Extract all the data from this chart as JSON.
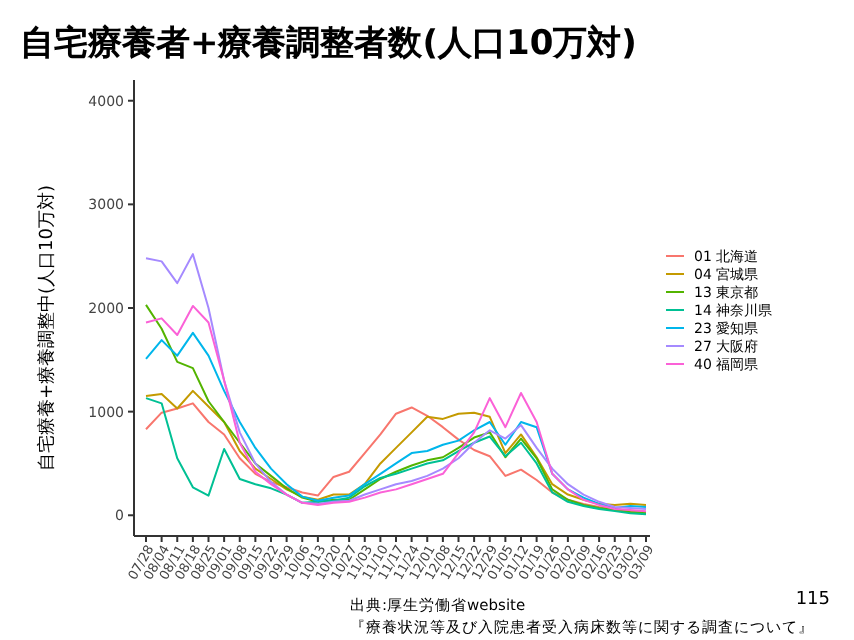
{
  "chart_data": {
    "type": "line",
    "title": "自宅療養者+療養調整者数(人口10万対)",
    "ylabel": "自宅療養+療養調整中(人口10万対)",
    "categories": [
      "07/28",
      "08/04",
      "08/11",
      "08/18",
      "08/25",
      "09/01",
      "09/08",
      "09/15",
      "09/22",
      "09/29",
      "10/06",
      "10/13",
      "10/20",
      "10/27",
      "11/03",
      "11/10",
      "11/17",
      "11/24",
      "12/01",
      "12/08",
      "12/15",
      "12/22",
      "12/29",
      "01/05",
      "01/12",
      "01/19",
      "01/26",
      "02/02",
      "02/09",
      "02/16",
      "02/23",
      "03/02",
      "03/09"
    ],
    "ylim": [
      -200,
      4200
    ],
    "yticks": [
      0,
      1000,
      2000,
      3000,
      4000
    ],
    "grid": false,
    "legend": "right",
    "marker": "none",
    "line_style": "solid",
    "series": [
      {
        "name": "01 北海道",
        "color": "#F8766D",
        "values": [
          830,
          990,
          1030,
          1080,
          900,
          780,
          550,
          400,
          320,
          270,
          220,
          190,
          370,
          420,
          600,
          780,
          980,
          1040,
          960,
          850,
          730,
          630,
          570,
          380,
          440,
          340,
          220,
          150,
          110,
          80,
          60,
          40,
          30
        ]
      },
      {
        "name": "04 宮城県",
        "color": "#C49A00",
        "values": [
          1150,
          1170,
          1030,
          1200,
          1050,
          900,
          620,
          450,
          350,
          250,
          180,
          150,
          200,
          200,
          300,
          500,
          650,
          800,
          950,
          930,
          980,
          990,
          950,
          600,
          780,
          560,
          300,
          200,
          150,
          110,
          100,
          110,
          100
        ]
      },
      {
        "name": "13 東京都",
        "color": "#53B400",
        "values": [
          2030,
          1800,
          1480,
          1420,
          1100,
          900,
          700,
          500,
          380,
          260,
          170,
          130,
          150,
          150,
          250,
          350,
          420,
          480,
          530,
          560,
          650,
          750,
          800,
          560,
          740,
          550,
          250,
          150,
          100,
          70,
          50,
          30,
          20
        ]
      },
      {
        "name": "14 神奈川県",
        "color": "#00C094",
        "values": [
          1130,
          1080,
          550,
          270,
          190,
          640,
          350,
          300,
          260,
          200,
          120,
          130,
          140,
          170,
          280,
          360,
          400,
          450,
          500,
          530,
          620,
          700,
          760,
          570,
          700,
          500,
          220,
          130,
          90,
          60,
          40,
          20,
          10
        ]
      },
      {
        "name": "23 愛知県",
        "color": "#00B6EB",
        "values": [
          1510,
          1690,
          1540,
          1760,
          1540,
          1200,
          900,
          650,
          450,
          300,
          180,
          140,
          170,
          190,
          300,
          400,
          500,
          600,
          620,
          680,
          720,
          820,
          900,
          680,
          900,
          850,
          400,
          250,
          170,
          110,
          70,
          90,
          80
        ]
      },
      {
        "name": "27 大阪府",
        "color": "#A58AFF",
        "values": [
          2480,
          2450,
          2240,
          2520,
          2000,
          1300,
          800,
          500,
          320,
          200,
          120,
          110,
          130,
          140,
          200,
          250,
          300,
          330,
          380,
          450,
          550,
          700,
          820,
          740,
          870,
          650,
          450,
          300,
          200,
          130,
          80,
          70,
          60
        ]
      },
      {
        "name": "40 福岡県",
        "color": "#FB61D7",
        "values": [
          1860,
          1900,
          1740,
          2020,
          1860,
          1300,
          700,
          420,
          300,
          200,
          120,
          100,
          120,
          130,
          170,
          220,
          250,
          300,
          350,
          400,
          600,
          800,
          1130,
          850,
          1180,
          900,
          400,
          250,
          150,
          100,
          60,
          50,
          40
        ]
      }
    ],
    "annotations": [
      "出典:厚生労働省website",
      "『療養状況等及び入院患者受入病床数等に関する調査について』",
      "115"
    ]
  }
}
